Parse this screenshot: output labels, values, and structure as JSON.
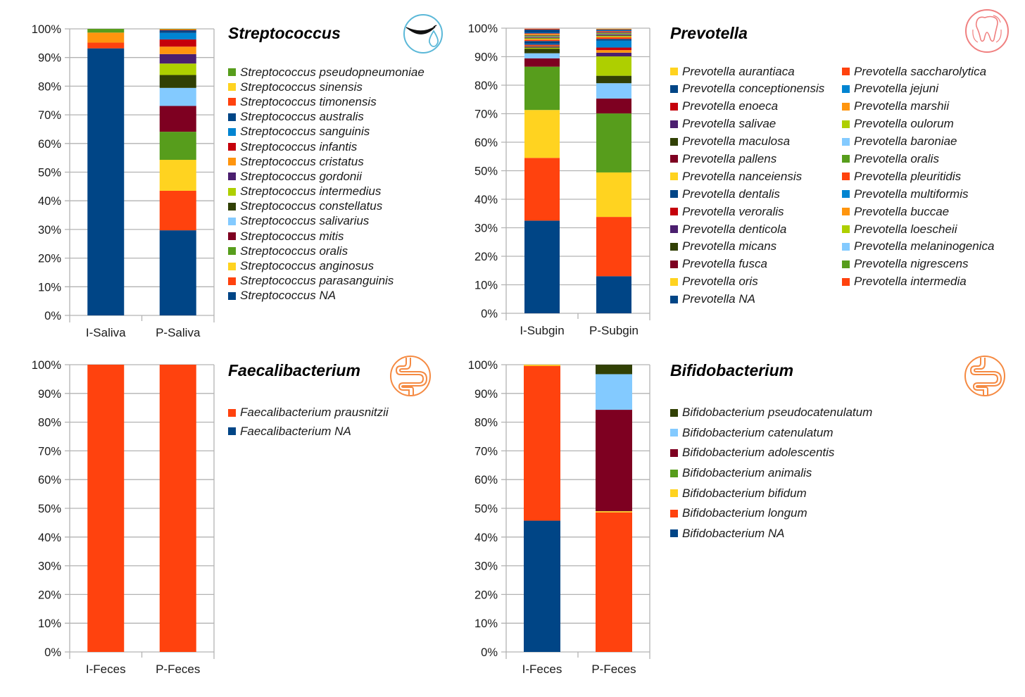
{
  "chart_data": [
    {
      "type": "bar",
      "stacked": "percent",
      "title": "Streptococcus",
      "icon": "saliva-mouth-icon",
      "icon_color": "#5bb8d8",
      "categories": [
        "I-Saliva",
        "P-Saliva"
      ],
      "ylim": [
        0,
        100
      ],
      "yticks": [
        "0%",
        "10%",
        "20%",
        "30%",
        "40%",
        "50%",
        "60%",
        "70%",
        "80%",
        "90%",
        "100%"
      ],
      "grid": true,
      "legend_placement": "right",
      "legend_columns": 1,
      "series": [
        {
          "name": "Streptococcus NA",
          "color": "#004586",
          "values": [
            93.2,
            29.7
          ]
        },
        {
          "name": "Streptococcus parasanguinis",
          "color": "#ff420e",
          "values": [
            2.0,
            13.8
          ]
        },
        {
          "name": "Streptococcus anginosus",
          "color": "#ffd320",
          "values": [
            0.0,
            10.8
          ]
        },
        {
          "name": "Streptococcus oralis",
          "color": "#579d1c",
          "values": [
            0.0,
            9.8
          ]
        },
        {
          "name": "Streptococcus mitis",
          "color": "#7e0021",
          "values": [
            0.0,
            9.0
          ]
        },
        {
          "name": "Streptococcus salivarius",
          "color": "#83caff",
          "values": [
            0.0,
            6.3
          ]
        },
        {
          "name": "Streptococcus constellatus",
          "color": "#314004",
          "values": [
            0.0,
            4.5
          ]
        },
        {
          "name": "Streptococcus intermedius",
          "color": "#aecf00",
          "values": [
            0.0,
            4.0
          ]
        },
        {
          "name": "Streptococcus gordonii",
          "color": "#4b1f6f",
          "values": [
            0.0,
            3.3
          ]
        },
        {
          "name": "Streptococcus cristatus",
          "color": "#ff950e",
          "values": [
            3.5,
            2.6
          ]
        },
        {
          "name": "Streptococcus infantis",
          "color": "#c5000b",
          "values": [
            0.0,
            2.5
          ]
        },
        {
          "name": "Streptococcus sanguinis",
          "color": "#0084d1",
          "values": [
            0.0,
            2.3
          ]
        },
        {
          "name": "Streptococcus australis",
          "color": "#004586",
          "values": [
            0.0,
            0.9
          ]
        },
        {
          "name": "Streptococcus timonensis",
          "color": "#ff420e",
          "values": [
            0.0,
            0.3
          ]
        },
        {
          "name": "Streptococcus sinensis",
          "color": "#ffd320",
          "values": [
            0.0,
            0.1
          ]
        },
        {
          "name": "Streptococcus pseudopneumoniae",
          "color": "#579d1c",
          "values": [
            1.3,
            0.1
          ]
        }
      ]
    },
    {
      "type": "bar",
      "stacked": "percent",
      "title": "Prevotella",
      "icon": "tooth-icon",
      "icon_color": "#f08080",
      "categories": [
        "I-Subgin",
        "P-Subgin"
      ],
      "ylim": [
        0,
        100
      ],
      "yticks": [
        "0%",
        "10%",
        "20%",
        "30%",
        "40%",
        "50%",
        "60%",
        "70%",
        "80%",
        "90%",
        "100%"
      ],
      "grid": true,
      "legend_placement": "right",
      "legend_columns": 2,
      "series": [
        {
          "name": "Prevotella NA",
          "color": "#004586",
          "values": [
            32.5,
            13.0
          ]
        },
        {
          "name": "Prevotella intermedia",
          "color": "#ff420e",
          "values": [
            22.0,
            20.8
          ]
        },
        {
          "name": "Prevotella oris",
          "color": "#ffd320",
          "values": [
            16.8,
            15.6
          ]
        },
        {
          "name": "Prevotella nigrescens",
          "color": "#579d1c",
          "values": [
            15.2,
            20.7
          ]
        },
        {
          "name": "Prevotella fusca",
          "color": "#7e0021",
          "values": [
            2.9,
            5.2
          ]
        },
        {
          "name": "Prevotella melaninogenica",
          "color": "#83caff",
          "values": [
            1.8,
            5.4
          ]
        },
        {
          "name": "Prevotella micans",
          "color": "#314004",
          "values": [
            1.6,
            2.6
          ]
        },
        {
          "name": "Prevotella loescheii",
          "color": "#aecf00",
          "values": [
            0.4,
            6.8
          ]
        },
        {
          "name": "Prevotella denticola",
          "color": "#4b1f6f",
          "values": [
            0.4,
            1.3
          ]
        },
        {
          "name": "Prevotella buccae",
          "color": "#ff950e",
          "values": [
            0.3,
            0.9
          ]
        },
        {
          "name": "Prevotella veroralis",
          "color": "#c5000b",
          "values": [
            0.3,
            0.9
          ]
        },
        {
          "name": "Prevotella multiformis",
          "color": "#0084d1",
          "values": [
            0.3,
            2.4
          ]
        },
        {
          "name": "Prevotella dentalis",
          "color": "#004586",
          "values": [
            1.0,
            0.6
          ]
        },
        {
          "name": "Prevotella pleuritidis",
          "color": "#ff420e",
          "values": [
            0.5,
            0.6
          ]
        },
        {
          "name": "Prevotella nanceiensis",
          "color": "#ffd320",
          "values": [
            0.3,
            0.3
          ]
        },
        {
          "name": "Prevotella oralis",
          "color": "#579d1c",
          "values": [
            0.3,
            0.3
          ]
        },
        {
          "name": "Prevotella pallens",
          "color": "#7e0021",
          "values": [
            0.2,
            0.3
          ]
        },
        {
          "name": "Prevotella baroniae",
          "color": "#83caff",
          "values": [
            0.2,
            0.2
          ]
        },
        {
          "name": "Prevotella maculosa",
          "color": "#314004",
          "values": [
            0.2,
            0.2
          ]
        },
        {
          "name": "Prevotella oulorum",
          "color": "#aecf00",
          "values": [
            0.2,
            0.2
          ]
        },
        {
          "name": "Prevotella salivae",
          "color": "#4b1f6f",
          "values": [
            0.2,
            0.3
          ]
        },
        {
          "name": "Prevotella marshii",
          "color": "#ff950e",
          "values": [
            0.4,
            0.2
          ]
        },
        {
          "name": "Prevotella enoeca",
          "color": "#c5000b",
          "values": [
            0.2,
            0.2
          ]
        },
        {
          "name": "Prevotella jejuni",
          "color": "#0084d1",
          "values": [
            0.2,
            0.2
          ]
        },
        {
          "name": "Prevotella conceptionensis",
          "color": "#004586",
          "values": [
            1.1,
            0.3
          ]
        },
        {
          "name": "Prevotella saccharolytica",
          "color": "#ff420e",
          "values": [
            0.3,
            0.2
          ]
        },
        {
          "name": "Prevotella aurantiaca",
          "color": "#ffd320",
          "values": [
            0.0,
            0.1
          ]
        }
      ],
      "legend_order": [
        "Prevotella aurantiaca",
        "Prevotella saccharolytica",
        "Prevotella conceptionensis",
        "Prevotella jejuni",
        "Prevotella enoeca",
        "Prevotella marshii",
        "Prevotella salivae",
        "Prevotella oulorum",
        "Prevotella maculosa",
        "Prevotella baroniae",
        "Prevotella pallens",
        "Prevotella oralis",
        "Prevotella nanceiensis",
        "Prevotella pleuritidis",
        "Prevotella dentalis",
        "Prevotella multiformis",
        "Prevotella veroralis",
        "Prevotella buccae",
        "Prevotella denticola",
        "Prevotella loescheii",
        "Prevotella micans",
        "Prevotella melaninogenica",
        "Prevotella fusca",
        "Prevotella nigrescens",
        "Prevotella oris",
        "Prevotella intermedia",
        "Prevotella NA"
      ]
    },
    {
      "type": "bar",
      "stacked": "percent",
      "title": "Faecalibacterium",
      "icon": "intestine-icon",
      "icon_color": "#f58a42",
      "categories": [
        "I-Feces",
        "P-Feces"
      ],
      "ylim": [
        0,
        100
      ],
      "yticks": [
        "0%",
        "10%",
        "20%",
        "30%",
        "40%",
        "50%",
        "60%",
        "70%",
        "80%",
        "90%",
        "100%"
      ],
      "grid": true,
      "legend_placement": "right",
      "legend_columns": 1,
      "series": [
        {
          "name": "Faecalibacterium NA",
          "color": "#004586",
          "values": [
            0.0,
            0.0
          ]
        },
        {
          "name": "Faecalibacterium prausnitzii",
          "color": "#ff420e",
          "values": [
            100.0,
            100.0
          ]
        }
      ]
    },
    {
      "type": "bar",
      "stacked": "percent",
      "title": "Bifidobacterium",
      "icon": "intestine-icon",
      "icon_color": "#f58a42",
      "categories": [
        "I-Feces",
        "P-Feces"
      ],
      "ylim": [
        0,
        100
      ],
      "yticks": [
        "0%",
        "10%",
        "20%",
        "30%",
        "40%",
        "50%",
        "60%",
        "70%",
        "80%",
        "90%",
        "100%"
      ],
      "grid": true,
      "legend_placement": "right",
      "legend_columns": 1,
      "series": [
        {
          "name": "Bifidobacterium NA",
          "color": "#004586",
          "values": [
            45.7,
            0.0
          ]
        },
        {
          "name": "Bifidobacterium longum",
          "color": "#ff420e",
          "values": [
            53.9,
            48.6
          ]
        },
        {
          "name": "Bifidobacterium bifidum",
          "color": "#ffd320",
          "values": [
            0.4,
            0.4
          ]
        },
        {
          "name": "Bifidobacterium animalis",
          "color": "#579d1c",
          "values": [
            0.0,
            0.0
          ]
        },
        {
          "name": "Bifidobacterium adolescentis",
          "color": "#7e0021",
          "values": [
            0.0,
            35.3
          ]
        },
        {
          "name": "Bifidobacterium catenulatum",
          "color": "#83caff",
          "values": [
            0.0,
            12.4
          ]
        },
        {
          "name": "Bifidobacterium pseudocatenulatum",
          "color": "#314004",
          "values": [
            0.0,
            3.3
          ]
        }
      ]
    }
  ]
}
